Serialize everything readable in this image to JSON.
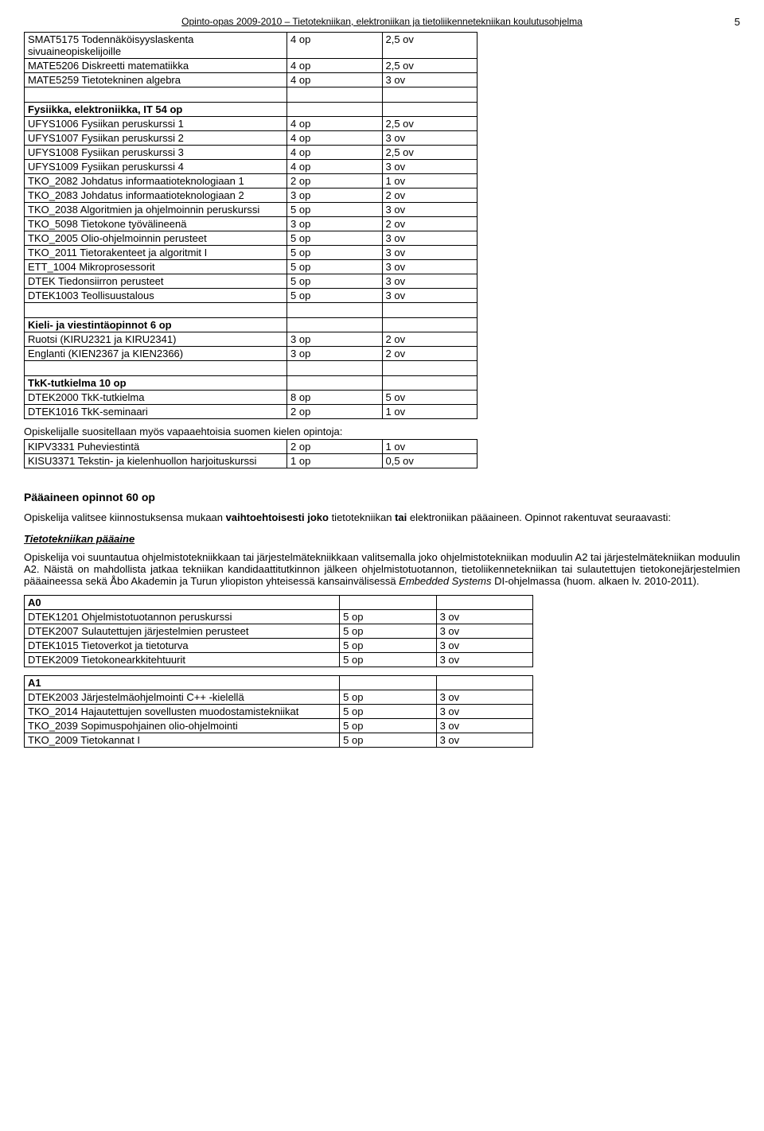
{
  "header": "Opinto-opas 2009-2010 – Tietotekniikan, elektroniikan ja tietoliikennetekniikan koulutusohjelma",
  "page_number": "5",
  "table1": {
    "rows": [
      {
        "c1": "SMAT5175 Todennäköisyyslaskenta sivuaineopiskelijoille",
        "c2": "4 op",
        "c3": "2,5 ov"
      },
      {
        "c1": "MATE5206 Diskreetti matematiikka",
        "c2": "4 op",
        "c3": "2,5 ov"
      },
      {
        "c1": "MATE5259 Tietotekninen algebra",
        "c2": "4 op",
        "c3": "3 ov"
      },
      {
        "blank": true
      },
      {
        "c1": "Fysiikka, elektroniikka, IT 54 op",
        "c2": "",
        "c3": "",
        "bold": true
      },
      {
        "c1": "UFYS1006 Fysiikan peruskurssi 1",
        "c2": "4 op",
        "c3": "2,5 ov"
      },
      {
        "c1": "UFYS1007 Fysiikan peruskurssi 2",
        "c2": "4 op",
        "c3": "3 ov"
      },
      {
        "c1": "UFYS1008 Fysiikan peruskurssi 3",
        "c2": "4 op",
        "c3": "2,5 ov"
      },
      {
        "c1": "UFYS1009 Fysiikan peruskurssi 4",
        "c2": "4 op",
        "c3": "3 ov"
      },
      {
        "c1": "TKO_2082 Johdatus informaatioteknologiaan 1",
        "c2": "2 op",
        "c3": "1 ov"
      },
      {
        "c1": "TKO_2083 Johdatus informaatioteknologiaan 2",
        "c2": "3 op",
        "c3": "2 ov"
      },
      {
        "c1": "TKO_2038 Algoritmien ja ohjelmoinnin peruskurssi",
        "c2": "5 op",
        "c3": "3 ov"
      },
      {
        "c1": "TKO_5098 Tietokone työvälineenä",
        "c2": "3 op",
        "c3": "2 ov"
      },
      {
        "c1": "TKO_2005 Olio-ohjelmoinnin perusteet",
        "c2": "5 op",
        "c3": "3 ov"
      },
      {
        "c1": "TKO_2011 Tietorakenteet ja algoritmit I",
        "c2": "5 op",
        "c3": "3 ov"
      },
      {
        "c1": "ETT_1004 Mikroprosessorit",
        "c2": "5 op",
        "c3": "3 ov"
      },
      {
        "c1": "DTEK Tiedonsiirron perusteet",
        "c2": "5 op",
        "c3": "3 ov"
      },
      {
        "c1": "DTEK1003 Teollisuustalous",
        "c2": "5 op",
        "c3": "3 ov"
      },
      {
        "blank": true
      },
      {
        "c1": "Kieli- ja viestintäopinnot 6 op",
        "c2": "",
        "c3": "",
        "bold": true
      },
      {
        "c1": "Ruotsi (KIRU2321 ja KIRU2341)",
        "c2": "3 op",
        "c3": "2 ov"
      },
      {
        "c1": "Englanti (KIEN2367 ja KIEN2366)",
        "c2": "3 op",
        "c3": "2 ov"
      },
      {
        "blank": true
      },
      {
        "c1": "TkK-tutkielma 10 op",
        "c2": "",
        "c3": "",
        "bold": true
      },
      {
        "c1": "DTEK2000 TkK-tutkielma",
        "c2": "8 op",
        "c3": "5 ov"
      },
      {
        "c1": "DTEK1016 TkK-seminaari",
        "c2": "2 op",
        "c3": "1 ov"
      }
    ]
  },
  "intro2": "Opiskelijalle suositellaan myös vapaaehtoisia suomen kielen opintoja:",
  "table2": {
    "rows": [
      {
        "c1": "KIPV3331 Puheviestintä",
        "c2": "2 op",
        "c3": "1 ov"
      },
      {
        "c1": "KISU3371  Tekstin- ja kielenhuollon harjoituskurssi",
        "c2": "1 op",
        "c3": "0,5 ov"
      }
    ]
  },
  "section_title": "Pääaineen opinnot 60 op",
  "para1_a": "Opiskelija valitsee kiinnostuksensa mukaan ",
  "para1_b": "vaihtoehtoisesti joko",
  "para1_c": " tietotekniikan ",
  "para1_d": "tai",
  "para1_e": " elektroniikan pääaineen. Opinnot rakentuvat seuraavasti:",
  "subsection": "Tietotekniikan pääaine",
  "para2_a": "Opiskelija voi suuntautua ohjelmistotekniikkaan tai järjestelmätekniikkaan valitsemalla joko ohjelmistotekniikan moduulin A2 tai järjestelmätekniikan moduulin A2. Näistä on mahdollista jatkaa tekniikan kandidaattitutkinnon jälkeen ohjelmistotuotannon, tietoliikennetekniikan tai sulautettujen tietokonejärjestelmien pääaineessa sekä Åbo Akademin ja Turun yliopiston yhteisessä kansainvälisessä ",
  "para2_b": "Embedded Systems",
  "para2_c": " DI-ohjelmassa (huom. alkaen lv. 2010-2011).",
  "table3": {
    "rows": [
      {
        "c1": "A0",
        "c2": "",
        "c3": "",
        "bold": true
      },
      {
        "c1": "DTEK1201 Ohjelmistotuotannon peruskurssi",
        "c2": "5 op",
        "c3": "3 ov"
      },
      {
        "c1": "DTEK2007 Sulautettujen järjestelmien perusteet",
        "c2": "5 op",
        "c3": "3 ov"
      },
      {
        "c1": "DTEK1015 Tietoverkot ja tietoturva",
        "c2": "5 op",
        "c3": "3 ov"
      },
      {
        "c1": "DTEK2009 Tietokonearkkitehtuurit",
        "c2": "5 op",
        "c3": "3 ov"
      }
    ]
  },
  "table4": {
    "rows": [
      {
        "c1": "A1",
        "c2": "",
        "c3": "",
        "bold": true
      },
      {
        "c1": "DTEK2003 Järjestelmäohjelmointi C++ -kielellä",
        "c2": "5 op",
        "c3": "3 ov"
      },
      {
        "c1": "TKO_2014 Hajautettujen sovellusten muodostamistekniikat",
        "c2": "5 op",
        "c3": "3 ov"
      },
      {
        "c1": "TKO_2039 Sopimuspohjainen olio-ohjelmointi",
        "c2": "5 op",
        "c3": "3 ov"
      },
      {
        "c1": "TKO_2009 Tietokannat I",
        "c2": "5 op",
        "c3": "3 ov"
      }
    ]
  }
}
